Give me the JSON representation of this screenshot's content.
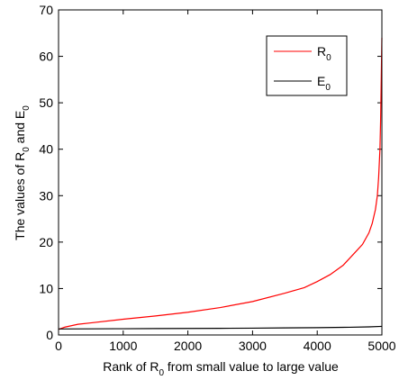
{
  "chart_data": {
    "type": "line",
    "title": "",
    "xlabel": {
      "prefix": "Rank of R",
      "sub": "0",
      "suffix": " from small value to large value"
    },
    "ylabel": {
      "part1": "The values of R",
      "sub1": "0",
      "part2": " and E",
      "sub2": "0"
    },
    "xlim": [
      0,
      5000
    ],
    "ylim": [
      0,
      70
    ],
    "xticks": [
      0,
      1000,
      2000,
      3000,
      4000,
      5000
    ],
    "yticks": [
      0,
      10,
      20,
      30,
      40,
      50,
      60,
      70
    ],
    "grid": false,
    "legend_position": "top-right",
    "series": [
      {
        "name": "R0",
        "label_main": "R",
        "label_sub": "0",
        "color": "#ff0000",
        "x": [
          0,
          100,
          300,
          500,
          1000,
          1500,
          2000,
          2500,
          3000,
          3500,
          3800,
          4000,
          4200,
          4400,
          4500,
          4600,
          4700,
          4800,
          4850,
          4900,
          4930,
          4950,
          4970,
          4980,
          4990,
          5000
        ],
        "y": [
          1.2,
          1.7,
          2.3,
          2.6,
          3.4,
          4.1,
          4.9,
          5.9,
          7.2,
          9.0,
          10.2,
          11.5,
          13.0,
          15.0,
          16.5,
          18.0,
          19.5,
          22.0,
          24.0,
          27.0,
          30.0,
          34.0,
          40.0,
          46.0,
          55.0,
          64.0
        ]
      },
      {
        "name": "E0",
        "label_main": "E",
        "label_sub": "0",
        "color": "#000000",
        "x": [
          0,
          500,
          1000,
          1500,
          2000,
          2500,
          3000,
          3500,
          4000,
          4500,
          4800,
          5000
        ],
        "y": [
          1.3,
          1.32,
          1.35,
          1.38,
          1.4,
          1.43,
          1.47,
          1.52,
          1.58,
          1.66,
          1.75,
          1.85
        ]
      }
    ]
  }
}
